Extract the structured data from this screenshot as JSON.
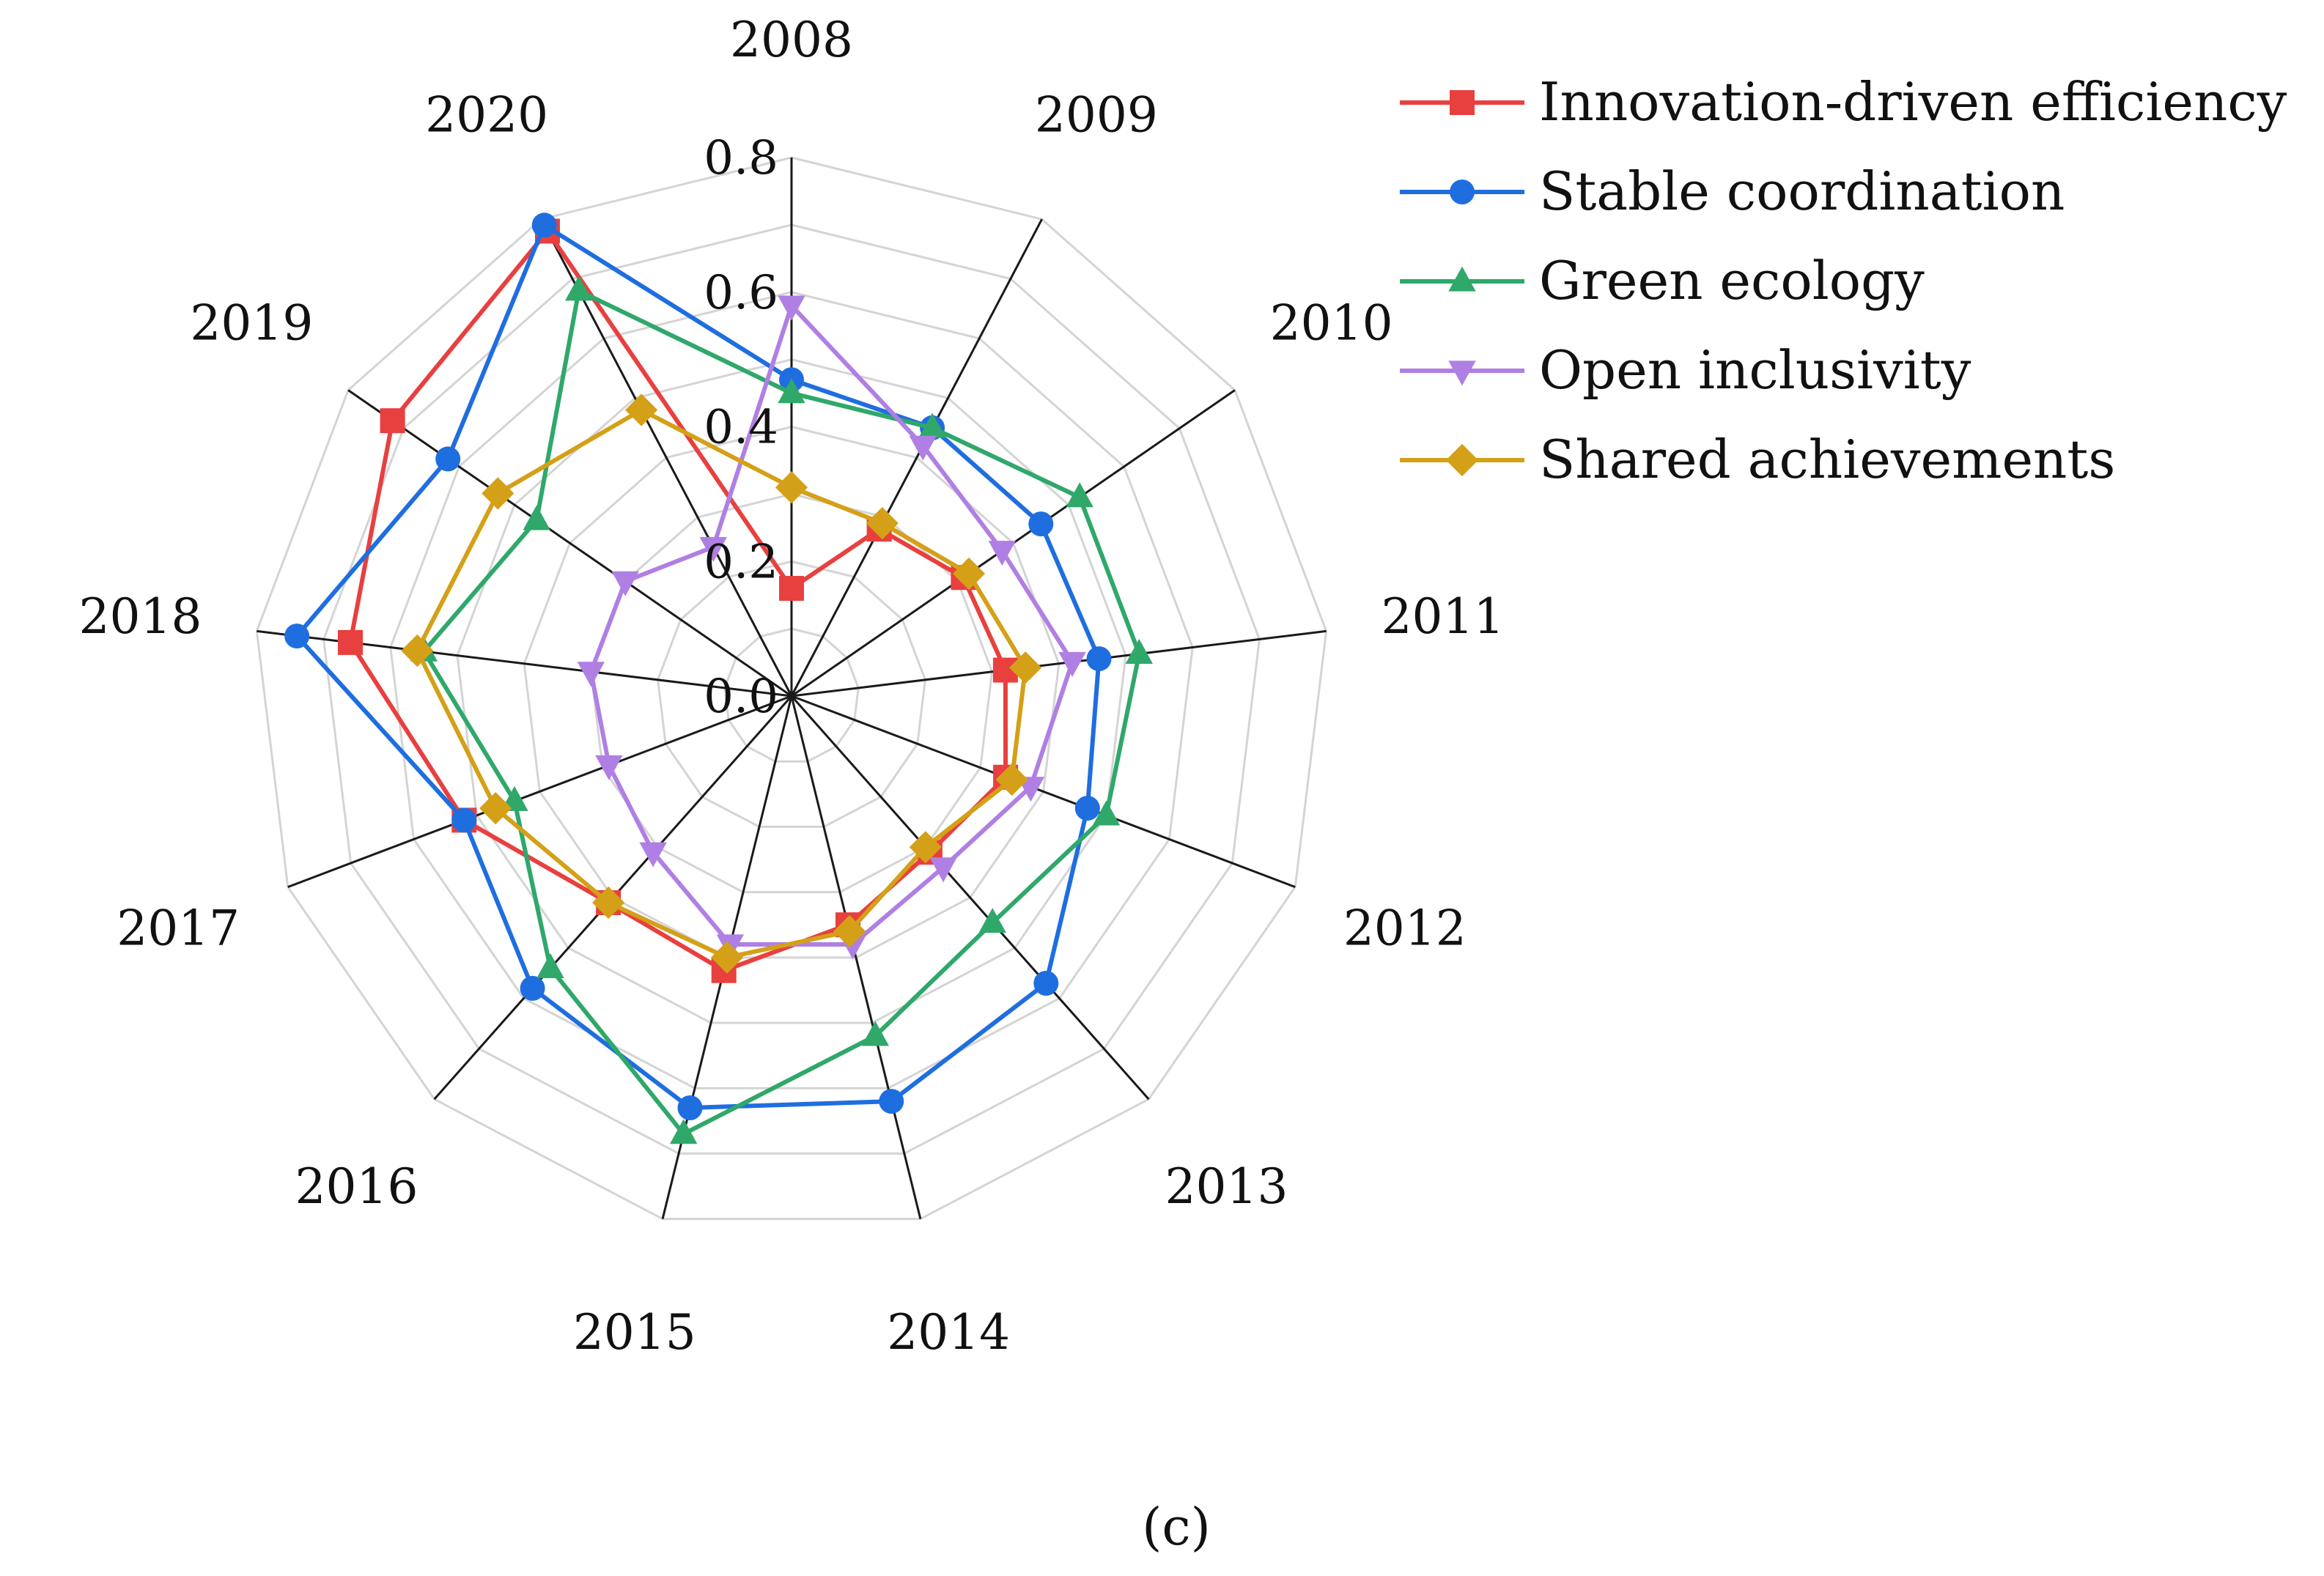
{
  "chart_data": {
    "type": "radar",
    "categories": [
      "2008",
      "2009",
      "2010",
      "2011",
      "2012",
      "2013",
      "2014",
      "2015",
      "2016",
      "2017",
      "2018",
      "2019",
      "2020"
    ],
    "axis_range": [
      0,
      0.8
    ],
    "ticks": [
      {
        "value": 0.0,
        "label": "0.0"
      },
      {
        "value": 0.2,
        "label": "0.2"
      },
      {
        "value": 0.4,
        "label": "0.4"
      },
      {
        "value": 0.6,
        "label": "0.6"
      },
      {
        "value": 0.8,
        "label": "0.8"
      }
    ],
    "legend_position": "top-right",
    "series": [
      {
        "name": "Innovation-driven efficiency",
        "color": "#e8403f",
        "marker": "square",
        "values": [
          0.16,
          0.28,
          0.31,
          0.32,
          0.34,
          0.31,
          0.35,
          0.42,
          0.41,
          0.52,
          0.66,
          0.72,
          0.78
        ]
      },
      {
        "name": "Stable coordination",
        "color": "#1f6ee0",
        "marker": "circle",
        "values": [
          0.47,
          0.45,
          0.45,
          0.46,
          0.47,
          0.57,
          0.62,
          0.63,
          0.58,
          0.52,
          0.74,
          0.62,
          0.79
        ]
      },
      {
        "name": "Green ecology",
        "color": "#2fa86a",
        "marker": "triangle-up",
        "values": [
          0.45,
          0.45,
          0.52,
          0.52,
          0.5,
          0.45,
          0.52,
          0.67,
          0.54,
          0.44,
          0.55,
          0.46,
          0.68
        ]
      },
      {
        "name": "Open inclusivity",
        "color": "#b07fe3",
        "marker": "triangle-down",
        "values": [
          0.58,
          0.42,
          0.38,
          0.42,
          0.38,
          0.34,
          0.38,
          0.38,
          0.31,
          0.29,
          0.3,
          0.3,
          0.25
        ]
      },
      {
        "name": "Shared achievements",
        "color": "#d4a017",
        "marker": "diamond",
        "values": [
          0.31,
          0.29,
          0.32,
          0.35,
          0.35,
          0.3,
          0.36,
          0.4,
          0.41,
          0.47,
          0.56,
          0.53,
          0.48
        ]
      }
    ]
  },
  "caption": "(c)"
}
